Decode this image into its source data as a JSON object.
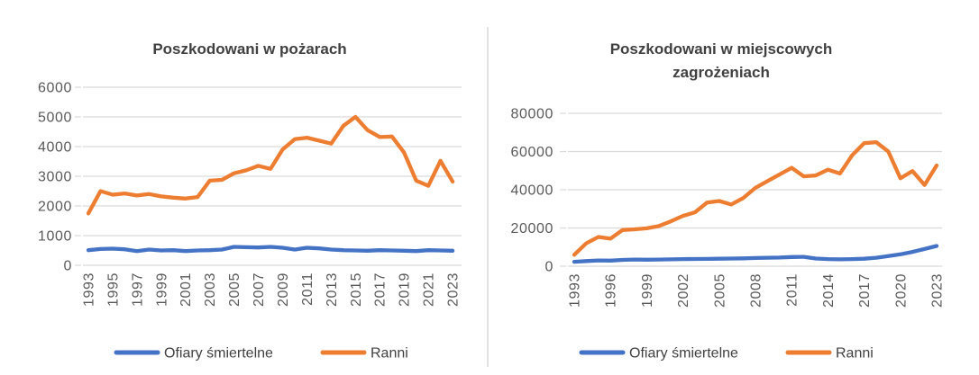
{
  "colors": {
    "accent_blue": "#4472C4",
    "accent_orange": "#ED7D31",
    "gridline": "#D9D9D9",
    "axis_text": "#595959",
    "title_text": "#404040",
    "divider": "#E2E2E2",
    "background": "#FFFFFF"
  },
  "legend": {
    "deaths_label": "Ofiary śmiertelne",
    "injured_label": "Ranni"
  },
  "chart_data": [
    {
      "id": "fires",
      "type": "line",
      "title": "Poszkodowani w pożarach",
      "title_lines": [
        "Poszkodowani w pożarach"
      ],
      "years": [
        1993,
        1994,
        1995,
        1996,
        1997,
        1998,
        1999,
        2000,
        2001,
        2002,
        2003,
        2004,
        2005,
        2006,
        2007,
        2008,
        2009,
        2010,
        2011,
        2012,
        2013,
        2014,
        2015,
        2016,
        2017,
        2018,
        2019,
        2020,
        2021,
        2022,
        2023
      ],
      "x_tick_labels": [
        "1993",
        "1995",
        "1997",
        "1999",
        "2001",
        "2003",
        "2005",
        "2007",
        "2009",
        "2011",
        "2013",
        "2015",
        "2017",
        "2019",
        "2021",
        "2023"
      ],
      "ylim": [
        0,
        6000
      ],
      "y_ticks": [
        0,
        1000,
        2000,
        3000,
        4000,
        5000,
        6000
      ],
      "grid": true,
      "legend_position": "bottom",
      "series": [
        {
          "sid": "deaths",
          "name": "Ofiary śmiertelne",
          "color": "#4472C4",
          "values": [
            510,
            550,
            560,
            540,
            480,
            530,
            500,
            510,
            480,
            500,
            510,
            530,
            620,
            610,
            600,
            620,
            590,
            530,
            590,
            570,
            530,
            510,
            500,
            490,
            510,
            500,
            490,
            480,
            510,
            500,
            490
          ]
        },
        {
          "sid": "injured",
          "name": "Ranni",
          "color": "#ED7D31",
          "values": [
            1750,
            2500,
            2380,
            2420,
            2350,
            2400,
            2320,
            2280,
            2250,
            2300,
            2850,
            2880,
            3100,
            3200,
            3350,
            3250,
            3900,
            4250,
            4300,
            4200,
            4100,
            4700,
            5000,
            4550,
            4320,
            4340,
            3800,
            2850,
            2680,
            3520,
            2820
          ]
        }
      ]
    },
    {
      "id": "local_threats",
      "type": "line",
      "title": "Poszkodowani w miejscowych zagrożeniach",
      "title_lines": [
        "Poszkodowani w miejscowych",
        "zagrożeniach"
      ],
      "years": [
        1993,
        1994,
        1995,
        1996,
        1997,
        1998,
        1999,
        2000,
        2001,
        2002,
        2003,
        2004,
        2005,
        2006,
        2007,
        2008,
        2009,
        2010,
        2011,
        2012,
        2013,
        2014,
        2015,
        2016,
        2017,
        2018,
        2019,
        2020,
        2021,
        2022,
        2023
      ],
      "x_tick_labels": [
        "1993",
        "1996",
        "1999",
        "2002",
        "2005",
        "2008",
        "2011",
        "2014",
        "2017",
        "2020",
        "2023"
      ],
      "ylim": [
        0,
        80000
      ],
      "y_ticks": [
        0,
        20000,
        40000,
        60000,
        80000
      ],
      "grid": true,
      "legend_position": "bottom",
      "series": [
        {
          "sid": "deaths",
          "name": "Ofiary śmiertelne",
          "color": "#4472C4",
          "values": [
            2300,
            2700,
            3000,
            2900,
            3300,
            3500,
            3400,
            3500,
            3600,
            3700,
            3750,
            3800,
            3900,
            4000,
            4100,
            4300,
            4400,
            4500,
            4800,
            4900,
            4000,
            3700,
            3600,
            3700,
            3900,
            4400,
            5300,
            6200,
            7500,
            9000,
            10600
          ]
        },
        {
          "sid": "injured",
          "name": "Ranni",
          "color": "#ED7D31",
          "values": [
            6000,
            12000,
            15300,
            14400,
            18900,
            19300,
            19800,
            21000,
            23500,
            26300,
            28200,
            33300,
            34100,
            32300,
            35700,
            41000,
            44500,
            48000,
            51500,
            47000,
            47500,
            50500,
            48500,
            58000,
            64400,
            64900,
            60000,
            46000,
            49800,
            42500,
            52700
          ]
        }
      ]
    }
  ]
}
